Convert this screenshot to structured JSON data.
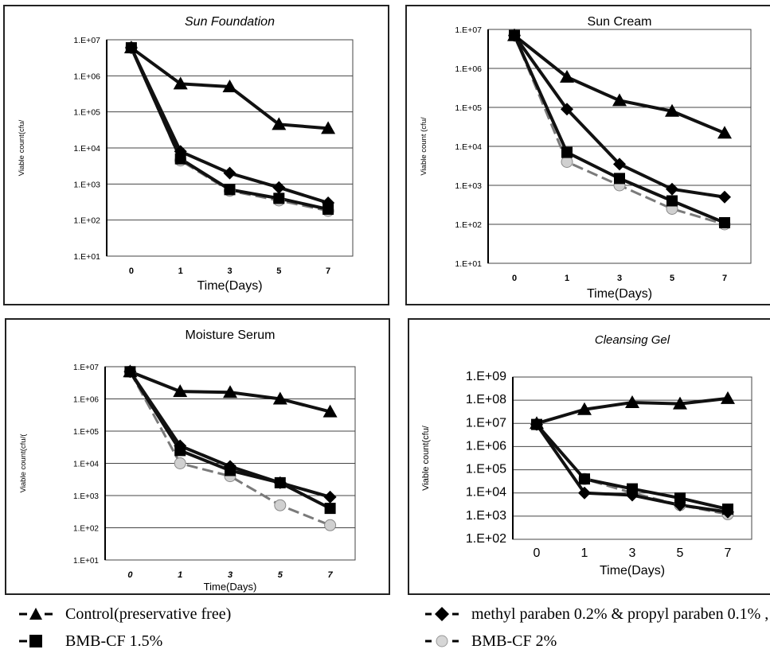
{
  "chart_data": [
    {
      "type": "line",
      "title": "Sun Foundation",
      "xlabel": "Time(Days)",
      "ylabel": "Viable count(cfu/",
      "x": [
        "0",
        "1",
        "3",
        "5",
        "7"
      ],
      "yscale": "log",
      "ylim": [
        10,
        10000000
      ],
      "yticks": [
        "1.E+01",
        "1.E+02",
        "1.E+03",
        "1.E+04",
        "1.E+05",
        "1.E+06",
        "1.E+07"
      ],
      "series": [
        {
          "name": "Control(preservative free)",
          "values": [
            6000000,
            600000,
            500000,
            45000,
            35000
          ]
        },
        {
          "name": "methyl paraben 0.2% & propyl paraben 0.1% ,",
          "values": [
            6000000,
            8000,
            2000,
            800,
            300
          ]
        },
        {
          "name": "BMB-CF 1.5%",
          "values": [
            6000000,
            5000,
            700,
            400,
            200
          ]
        },
        {
          "name": "BMB-CF 2%",
          "values": [
            6000000,
            4500,
            650,
            350,
            180
          ]
        }
      ]
    },
    {
      "type": "line",
      "title": "Sun Cream",
      "xlabel": "Time(Days)",
      "ylabel": "Viable count (cfu/",
      "x": [
        "0",
        "1",
        "3",
        "5",
        "7"
      ],
      "yscale": "log",
      "ylim": [
        10,
        10000000
      ],
      "yticks": [
        "1.E+01",
        "1.E+02",
        "1.E+03",
        "1.E+04",
        "1.E+05",
        "1.E+06",
        "1.E+07"
      ],
      "series": [
        {
          "name": "Control(preservative free)",
          "values": [
            7000000,
            600000,
            150000,
            80000,
            22000
          ]
        },
        {
          "name": "methyl paraben 0.2% & propyl paraben 0.1% ,",
          "values": [
            7000000,
            90000,
            3500,
            800,
            500
          ]
        },
        {
          "name": "BMB-CF 1.5%",
          "values": [
            7000000,
            7000,
            1500,
            400,
            110
          ]
        },
        {
          "name": "BMB-CF 2%",
          "values": [
            7000000,
            4000,
            1000,
            250,
            100
          ]
        }
      ]
    },
    {
      "type": "line",
      "title": "Moisture Serum",
      "xlabel": "Time(Days)",
      "ylabel": "Viable count(cfu/(",
      "x": [
        "0",
        "1",
        "3",
        "5",
        "7"
      ],
      "yscale": "log",
      "ylim": [
        10,
        10000000
      ],
      "yticks": [
        "1.E+01",
        "1.E+02",
        "1.E+03",
        "1.E+04",
        "1.E+05",
        "1.E+06",
        "1.E+07"
      ],
      "series": [
        {
          "name": "Control(preservative free)",
          "values": [
            7000000,
            1700000,
            1600000,
            1000000,
            400000
          ]
        },
        {
          "name": "methyl paraben 0.2% & propyl paraben 0.1% ,",
          "values": [
            7000000,
            35000,
            8000,
            2500,
            900
          ]
        },
        {
          "name": "BMB-CF 1.5%",
          "values": [
            7000000,
            25000,
            6000,
            2500,
            400
          ]
        },
        {
          "name": "BMB-CF 2%",
          "values": [
            7000000,
            10000,
            4000,
            500,
            120
          ]
        }
      ]
    },
    {
      "type": "line",
      "title": "Cleansing Gel",
      "xlabel": "Time(Days)",
      "ylabel": "Viable count(cfu/",
      "x": [
        "0",
        "1",
        "3",
        "5",
        "7"
      ],
      "yscale": "log",
      "ylim": [
        100,
        1000000000
      ],
      "yticks": [
        "1.E+02",
        "1.E+03",
        "1.E+04",
        "1.E+05",
        "1.E+06",
        "1.E+07",
        "1.E+08",
        "1.E+09"
      ],
      "series": [
        {
          "name": "Control(preservative free)",
          "values": [
            10000000,
            40000000,
            80000000,
            70000000,
            120000000
          ]
        },
        {
          "name": "methyl paraben 0.2% & propyl paraben 0.1% ,",
          "values": [
            9000000,
            10000,
            8000,
            3000,
            1500
          ]
        },
        {
          "name": "BMB-CF 1.5%",
          "values": [
            9000000,
            40000,
            15000,
            6000,
            2000
          ]
        },
        {
          "name": "BMB-CF 2%",
          "values": [
            9000000,
            40000,
            10000,
            3000,
            1200
          ]
        }
      ]
    }
  ],
  "legend": {
    "control": "Control(preservative free)",
    "paraben": "methyl paraben 0.2% & propyl paraben 0.1% ,",
    "bmb15": "BMB-CF 1.5%",
    "bmb2": "BMB-CF 2%"
  }
}
